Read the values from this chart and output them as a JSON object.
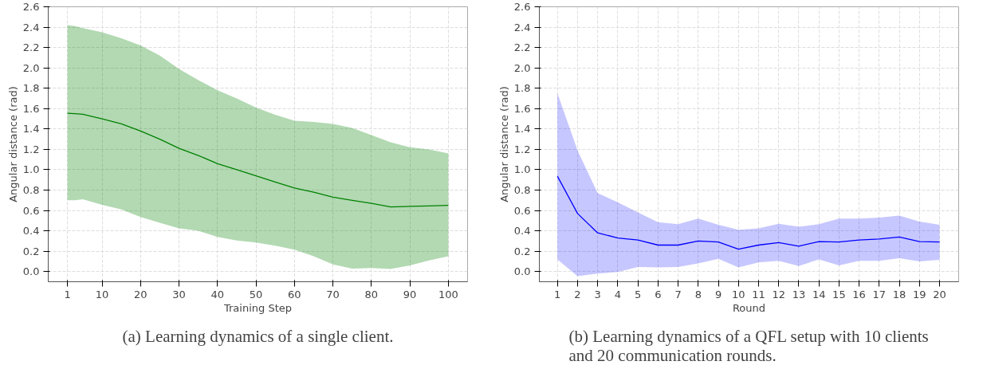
{
  "chart_data": [
    {
      "type": "line",
      "title": "(a) Learning dynamics of a single client.",
      "xlabel": "Training Step",
      "ylabel": "Angular distance (rad)",
      "x": [
        1,
        3,
        5,
        10,
        15,
        20,
        25,
        30,
        35,
        40,
        45,
        50,
        55,
        60,
        65,
        70,
        75,
        80,
        85,
        90,
        95,
        100
      ],
      "series": [
        {
          "color": "#008000",
          "values": [
            1.555,
            1.55,
            1.545,
            1.5,
            1.45,
            1.38,
            1.3,
            1.21,
            1.14,
            1.06,
            1.0,
            0.94,
            0.88,
            0.82,
            0.78,
            0.73,
            0.7,
            0.67,
            0.635,
            0.64,
            0.645,
            0.65
          ],
          "upper": [
            2.42,
            2.41,
            2.39,
            2.35,
            2.29,
            2.22,
            2.12,
            1.99,
            1.88,
            1.78,
            1.7,
            1.61,
            1.54,
            1.48,
            1.47,
            1.45,
            1.41,
            1.34,
            1.27,
            1.22,
            1.2,
            1.16
          ],
          "lower": [
            0.7,
            0.7,
            0.71,
            0.655,
            0.61,
            0.535,
            0.48,
            0.425,
            0.4,
            0.34,
            0.305,
            0.285,
            0.255,
            0.215,
            0.15,
            0.07,
            0.03,
            0.035,
            0.025,
            0.06,
            0.11,
            0.15
          ]
        }
      ],
      "xlim": [
        -4,
        105
      ],
      "xticks": [
        1,
        10,
        20,
        30,
        40,
        50,
        60,
        70,
        80,
        90,
        100
      ],
      "ylim": [
        -0.1,
        2.6
      ],
      "yticks": [
        {
          "value": 0,
          "label": "0.0"
        },
        0.2,
        0.4,
        0.6,
        0.8,
        {
          "value": 1,
          "label": "1.0"
        },
        1.2,
        1.4,
        1.6,
        1.8,
        {
          "value": 2,
          "label": "2.0"
        },
        2.2,
        2.4,
        2.6
      ],
      "grid": true,
      "line_style": "solid"
    },
    {
      "type": "line",
      "title": "(b) Learning dynamics of a QFL setup with 10 clients and 20 communication rounds.",
      "xlabel": "Round",
      "ylabel": "Angular distance (rad)",
      "x": [
        1,
        2,
        3,
        4,
        5,
        6,
        7,
        8,
        9,
        10,
        11,
        12,
        13,
        14,
        15,
        16,
        17,
        18,
        19,
        20
      ],
      "series": [
        {
          "color": "#0000ff",
          "values": [
            0.936,
            0.57,
            0.38,
            0.33,
            0.31,
            0.26,
            0.26,
            0.3,
            0.29,
            0.22,
            0.26,
            0.285,
            0.25,
            0.295,
            0.29,
            0.31,
            0.32,
            0.34,
            0.295,
            0.29
          ],
          "upper": [
            1.75,
            1.19,
            0.77,
            0.68,
            0.58,
            0.485,
            0.465,
            0.52,
            0.46,
            0.41,
            0.425,
            0.47,
            0.44,
            0.465,
            0.52,
            0.52,
            0.53,
            0.55,
            0.49,
            0.46
          ],
          "lower": [
            0.12,
            -0.045,
            -0.02,
            -0.005,
            0.045,
            0.04,
            0.045,
            0.08,
            0.125,
            0.04,
            0.09,
            0.105,
            0.055,
            0.12,
            0.06,
            0.105,
            0.105,
            0.13,
            0.1,
            0.115
          ]
        }
      ],
      "xlim": [
        0.1,
        20.95
      ],
      "xticks": [
        1,
        2,
        3,
        4,
        5,
        6,
        7,
        8,
        9,
        10,
        11,
        12,
        13,
        14,
        15,
        16,
        17,
        18,
        19,
        20
      ],
      "ylim": [
        -0.1,
        2.6
      ],
      "yticks": [
        {
          "value": 0,
          "label": "0.0"
        },
        0.2,
        0.4,
        0.6,
        0.8,
        {
          "value": 1,
          "label": "1.0"
        },
        1.2,
        1.4,
        1.6,
        1.8,
        {
          "value": 2,
          "label": "2.0"
        },
        2.2,
        2.4,
        2.6
      ],
      "grid": true,
      "line_style": "solid"
    }
  ]
}
